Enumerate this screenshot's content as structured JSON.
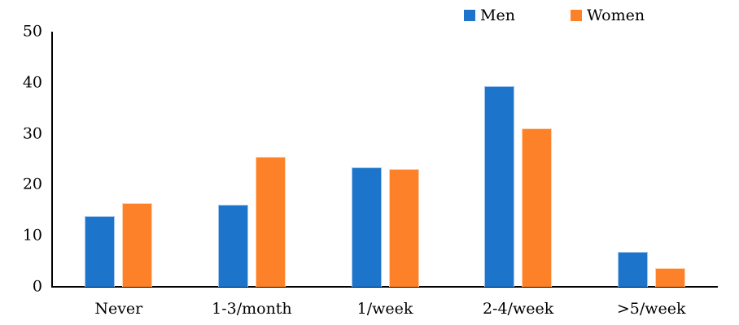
{
  "chart_data": {
    "type": "bar",
    "title": "",
    "xlabel": "",
    "ylabel": "",
    "categories": [
      "Never",
      "1-3/month",
      "1/week",
      "2-4/week",
      ">5/week"
    ],
    "series": [
      {
        "name": "Men",
        "color": "#1C75CB",
        "edge_color": "#A3C6EB",
        "values": [
          13.9,
          16.1,
          23.4,
          39.3,
          6.8
        ]
      },
      {
        "name": "Women",
        "color": "#FD8128",
        "edge_color": "#FED2AD",
        "values": [
          16.4,
          25.5,
          23.1,
          31.0,
          3.6
        ]
      }
    ],
    "ylim": [
      0,
      50
    ],
    "yticks": [
      0,
      10,
      20,
      30,
      40,
      50
    ],
    "grid": false,
    "legend_position": "top-center-right",
    "axis_color": "#000000",
    "text_color": "#000000"
  }
}
